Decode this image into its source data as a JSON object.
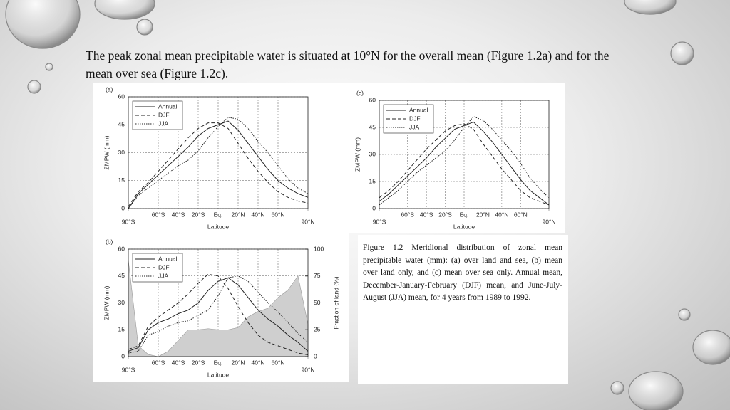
{
  "slide": {
    "heading": "The peak zonal mean precipitable water is situated at 10°N for the overall mean (Figure 1.2a) and for the mean over sea (Figure 1.2c).",
    "caption": "Figure 1.2 Meridional distribution of zonal mean precipitable water (mm): (a) over land and sea, (b) mean over land only, and (c) mean over sea only. Annual mean, December-January-February (DJF) mean, and June-July-August (JJA) mean, for 4 years from 1989 to 1992."
  },
  "chart_data": [
    {
      "type": "line",
      "title": "(a)",
      "x_label": "Latitude",
      "y_label": "ZMPW (mm)",
      "x": [
        -90,
        -80,
        -70,
        -60,
        -50,
        -40,
        -30,
        -20,
        -10,
        0,
        10,
        20,
        30,
        40,
        50,
        60,
        70,
        80,
        90
      ],
      "xlim": [
        -90,
        90
      ],
      "xticks": [
        {
          "value": -90,
          "label": "90°S"
        },
        {
          "value": -60,
          "label": "60°S"
        },
        {
          "value": -40,
          "label": "40°S"
        },
        {
          "value": -20,
          "label": "20°S"
        },
        {
          "value": 0,
          "label": "Eq."
        },
        {
          "value": 20,
          "label": "20°N"
        },
        {
          "value": 40,
          "label": "40°N"
        },
        {
          "value": 60,
          "label": "60°N"
        },
        {
          "value": 90,
          "label": "90°N"
        }
      ],
      "ylim": [
        0,
        60
      ],
      "yticks": [
        0,
        15,
        30,
        45,
        60
      ],
      "grid": true,
      "legend": "upper left",
      "series": [
        {
          "name": "Annual",
          "color": "#222222",
          "line_style": "solid",
          "values": [
            0,
            8,
            13,
            18,
            23,
            28,
            33,
            39,
            43,
            45,
            47,
            42,
            35,
            28,
            21,
            15,
            11,
            8,
            6
          ]
        },
        {
          "name": "DJF",
          "color": "#222222",
          "line_style": "dashed",
          "values": [
            1,
            9,
            14,
            20,
            26,
            32,
            38,
            43,
            46,
            46,
            43,
            35,
            27,
            20,
            14,
            9,
            6,
            4,
            3
          ]
        },
        {
          "name": "JJA",
          "color": "#222222",
          "line_style": "dotted",
          "values": [
            0,
            7,
            11,
            15,
            19,
            23,
            26,
            31,
            38,
            44,
            49,
            48,
            43,
            36,
            30,
            23,
            16,
            11,
            8
          ]
        }
      ]
    },
    {
      "type": "line",
      "title": "(b)",
      "x_label": "Latitude",
      "y_label": "ZMPW (mm)",
      "y2_label": "Fraction of land (%)",
      "x": [
        -90,
        -80,
        -70,
        -60,
        -50,
        -40,
        -30,
        -20,
        -10,
        0,
        10,
        20,
        30,
        40,
        50,
        60,
        70,
        80,
        90
      ],
      "xlim": [
        -90,
        90
      ],
      "xticks": [
        {
          "value": -90,
          "label": "90°S"
        },
        {
          "value": -60,
          "label": "60°S"
        },
        {
          "value": -40,
          "label": "40°S"
        },
        {
          "value": -20,
          "label": "20°S"
        },
        {
          "value": 0,
          "label": "Eq."
        },
        {
          "value": 20,
          "label": "20°N"
        },
        {
          "value": 40,
          "label": "40°N"
        },
        {
          "value": 60,
          "label": "60°N"
        },
        {
          "value": 90,
          "label": "90°N"
        }
      ],
      "ylim": [
        0,
        60
      ],
      "yticks": [
        0,
        15,
        30,
        45,
        60
      ],
      "y2lim": [
        0,
        100
      ],
      "y2ticks": [
        0,
        25,
        50,
        75,
        100
      ],
      "grid": true,
      "legend": "upper left",
      "area": {
        "axis": "y2",
        "color": "#cfcfcf",
        "values": [
          90,
          10,
          2,
          0,
          5,
          15,
          25,
          25,
          26,
          25,
          25,
          27,
          37,
          42,
          45,
          55,
          62,
          75,
          30
        ]
      },
      "series": [
        {
          "name": "Annual",
          "color": "#222222",
          "line_style": "solid",
          "values": [
            3,
            5,
            15,
            19,
            21,
            24,
            26,
            30,
            37,
            42,
            44,
            40,
            33,
            26,
            21,
            17,
            12,
            8,
            3
          ]
        },
        {
          "name": "DJF",
          "color": "#222222",
          "line_style": "dashed",
          "values": [
            4,
            6,
            17,
            22,
            26,
            30,
            35,
            41,
            46,
            45,
            38,
            28,
            19,
            12,
            8,
            6,
            4,
            2,
            1
          ]
        },
        {
          "name": "JJA",
          "color": "#222222",
          "line_style": "dotted",
          "values": [
            2,
            3,
            12,
            14,
            17,
            19,
            20,
            23,
            26,
            34,
            44,
            45,
            42,
            36,
            30,
            25,
            19,
            13,
            8
          ]
        }
      ]
    },
    {
      "type": "line",
      "title": "(c)",
      "x_label": "Latitude",
      "y_label": "ZMPW (mm)",
      "x": [
        -90,
        -80,
        -70,
        -60,
        -50,
        -40,
        -30,
        -20,
        -10,
        0,
        10,
        20,
        30,
        40,
        50,
        60,
        70,
        80,
        90
      ],
      "xlim": [
        -90,
        90
      ],
      "xticks": [
        {
          "value": -90,
          "label": "90°S"
        },
        {
          "value": -60,
          "label": "60°S"
        },
        {
          "value": -40,
          "label": "40°S"
        },
        {
          "value": -20,
          "label": "20°S"
        },
        {
          "value": 0,
          "label": "Eq."
        },
        {
          "value": 20,
          "label": "20°N"
        },
        {
          "value": 40,
          "label": "40°N"
        },
        {
          "value": 60,
          "label": "60°N"
        },
        {
          "value": 90,
          "label": "90°N"
        }
      ],
      "ylim": [
        0,
        60
      ],
      "yticks": [
        0,
        15,
        30,
        45,
        60
      ],
      "grid": true,
      "legend": "upper left",
      "series": [
        {
          "name": "Annual",
          "color": "#222222",
          "line_style": "solid",
          "values": [
            4,
            8,
            13,
            18,
            23,
            28,
            34,
            39,
            44,
            46,
            48,
            43,
            37,
            30,
            23,
            16,
            10,
            6,
            2
          ]
        },
        {
          "name": "DJF",
          "color": "#222222",
          "line_style": "dashed",
          "values": [
            6,
            10,
            15,
            21,
            27,
            33,
            38,
            43,
            46,
            47,
            44,
            36,
            29,
            22,
            16,
            10,
            6,
            4,
            2
          ]
        },
        {
          "name": "JJA",
          "color": "#222222",
          "line_style": "dotted",
          "values": [
            2,
            6,
            10,
            15,
            20,
            24,
            28,
            32,
            38,
            45,
            51,
            49,
            44,
            38,
            32,
            25,
            17,
            11,
            6
          ]
        }
      ]
    }
  ]
}
